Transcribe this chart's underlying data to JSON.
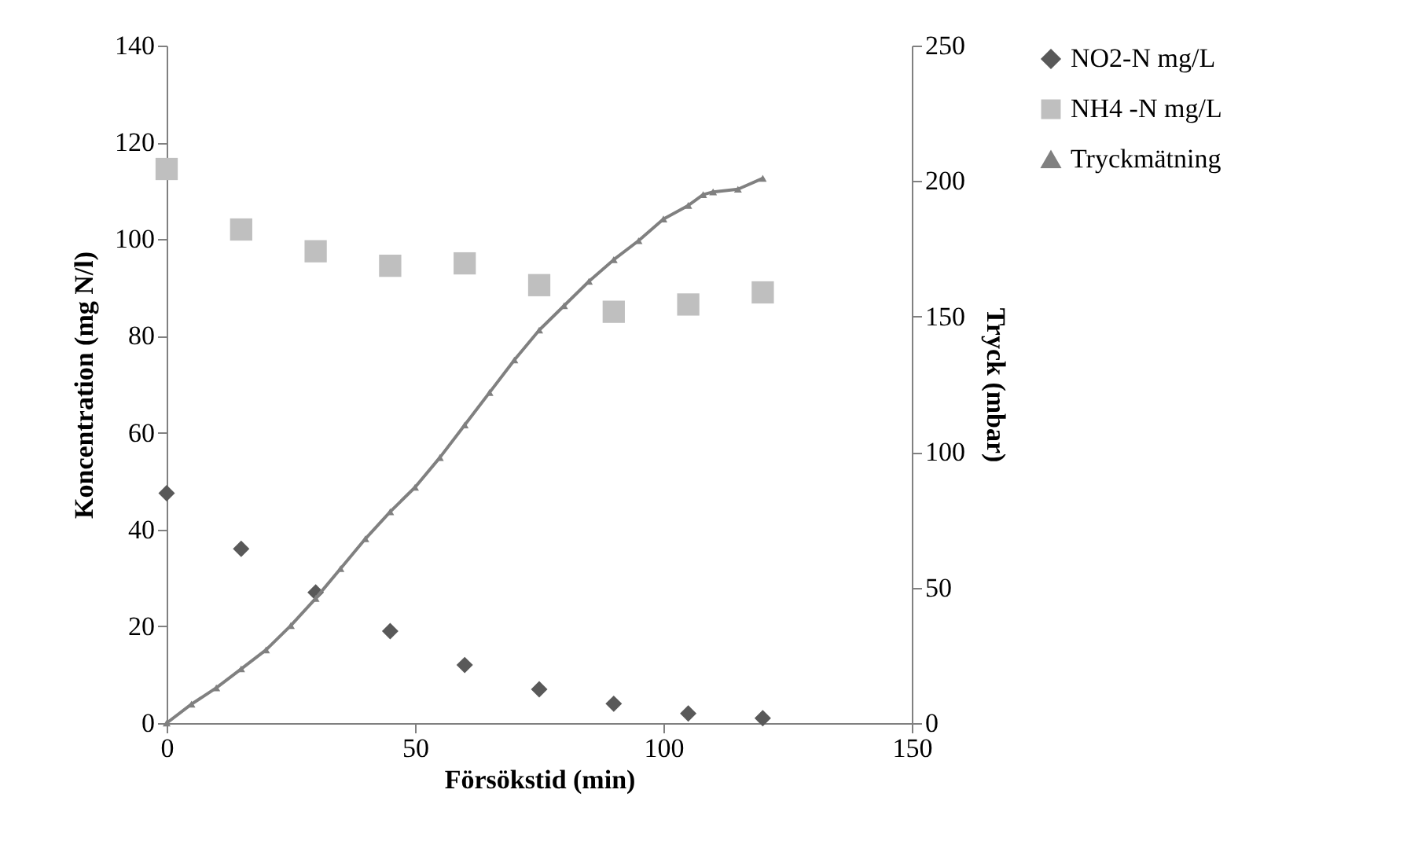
{
  "chart_data": {
    "type": "scatter",
    "xlabel": "Försökstid (min)",
    "ylabel": "Koncentration (mg N/l)",
    "y2label": "Tryck (mbar)",
    "xlim": [
      0,
      150
    ],
    "xticks": [
      0,
      50,
      100,
      150
    ],
    "ylim": [
      0,
      140
    ],
    "yticks": [
      0,
      20,
      40,
      60,
      80,
      100,
      120,
      140
    ],
    "y2lim": [
      0,
      250
    ],
    "y2ticks": [
      0,
      50,
      100,
      150,
      200,
      250
    ],
    "grid": false,
    "legend": "right",
    "series": [
      {
        "name": "NO2-N mg/L",
        "color": "#595959",
        "marker": "diamond",
        "x": [
          0,
          15,
          30,
          45,
          60,
          75,
          90,
          105,
          120
        ],
        "values": [
          47.5,
          36,
          27,
          19,
          12,
          7,
          4,
          2,
          1
        ]
      },
      {
        "name": "NH4 -N mg/L",
        "color": "#bfbfbf",
        "marker": "square",
        "x": [
          0,
          15,
          30,
          45,
          60,
          75,
          90,
          105,
          120
        ],
        "values": [
          114.5,
          102,
          97.5,
          94.5,
          95,
          90.5,
          85,
          86.5,
          89
        ]
      },
      {
        "name": "Tryckmätning",
        "type": "line",
        "axis": "y2",
        "color": "#808080",
        "marker": "triangle",
        "line_style": "solid",
        "x": [
          0,
          5,
          10,
          15,
          20,
          25,
          30,
          35,
          40,
          45,
          50,
          55,
          60,
          65,
          70,
          75,
          80,
          85,
          90,
          95,
          100,
          105,
          108,
          110,
          115,
          120
        ],
        "values": [
          0,
          7,
          13,
          20,
          27,
          36,
          46,
          57,
          68,
          78,
          87,
          98,
          110,
          122,
          134,
          145,
          154,
          163,
          171,
          178,
          186,
          191,
          195,
          196,
          197,
          201
        ]
      }
    ]
  }
}
